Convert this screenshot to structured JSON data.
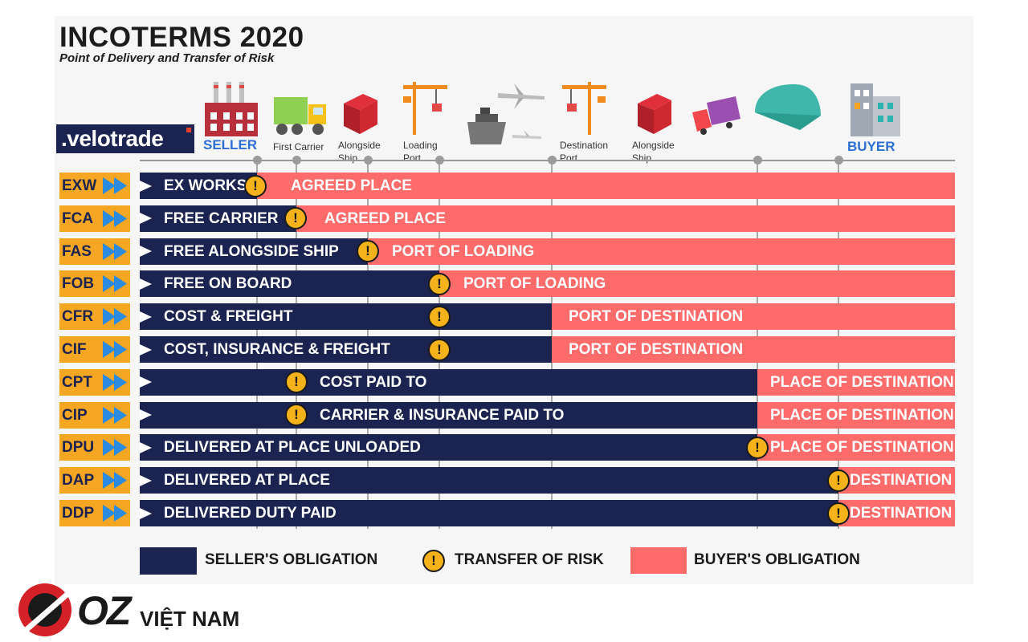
{
  "header": {
    "title": "INCOTERMS 2020",
    "subtitle": "Point of Delivery and Transfer of Risk"
  },
  "brand": {
    "velotrade": ".velotrade",
    "footer_brand": "OZ",
    "footer_sub": "VIỆT NAM"
  },
  "stages": {
    "seller": "SELLER",
    "first_carrier": "First Carrier",
    "alongside_ship_1": "Alongside Ship",
    "loading_port": "Loading Port",
    "destination_port": "Destination Port",
    "alongside_ship_2": "Alongside Ship",
    "buyer": "BUYER"
  },
  "terms": [
    {
      "code": "EXW",
      "seller_label": "EX WORKS",
      "buyer_label": "AGREED PLACE"
    },
    {
      "code": "FCA",
      "seller_label": "FREE CARRIER",
      "buyer_label": "AGREED PLACE"
    },
    {
      "code": "FAS",
      "seller_label": "FREE ALONGSIDE SHIP",
      "buyer_label": "PORT OF LOADING"
    },
    {
      "code": "FOB",
      "seller_label": "FREE ON BOARD",
      "buyer_label": "PORT OF LOADING"
    },
    {
      "code": "CFR",
      "seller_label": "COST & FREIGHT",
      "buyer_label": "PORT OF DESTINATION"
    },
    {
      "code": "CIF",
      "seller_label": "COST, INSURANCE & FREIGHT",
      "buyer_label": "PORT OF DESTINATION"
    },
    {
      "code": "CPT",
      "seller_label": "COST PAID TO",
      "buyer_label": "PLACE OF DESTINATION"
    },
    {
      "code": "CIP",
      "seller_label": "CARRIER & INSURANCE PAID TO",
      "buyer_label": "PLACE OF DESTINATION"
    },
    {
      "code": "DPU",
      "seller_label": "DELIVERED AT PLACE UNLOADED",
      "buyer_label": "PLACE OF DESTINATION"
    },
    {
      "code": "DAP",
      "seller_label": "DELIVERED AT PLACE",
      "buyer_label": "DESTINATION"
    },
    {
      "code": "DDP",
      "seller_label": "DELIVERED DUTY PAID",
      "buyer_label": "DESTINATION"
    }
  ],
  "legend": {
    "seller": "SELLER'S OBLIGATION",
    "risk": "TRANSFER OF RISK",
    "buyer": "BUYER'S OBLIGATION"
  },
  "colors": {
    "seller": "#1b2350",
    "buyer": "#fd6b6b",
    "code_bg": "#f5a623",
    "risk": "#f5b21a"
  },
  "icons": [
    "factory-icon",
    "truck-icon",
    "crane-icon",
    "ship-icon",
    "airplane-icon",
    "warehouse-icon",
    "building-icon",
    "warning-icon"
  ]
}
